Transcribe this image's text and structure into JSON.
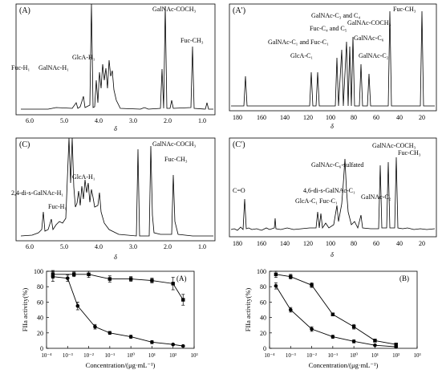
{
  "figure": {
    "nmr_panels": [
      {
        "label": "(A)",
        "xlabel": "δ",
        "ticks": [
          "6.0",
          "5.0",
          "4.0",
          "3.0",
          "2.0",
          "1.0"
        ],
        "annotations": [
          "GalNAc-COCH₃",
          "GlcA-H₁",
          "Fuc-H₁",
          "GalNAc-H₁",
          "Fuc-CH₃"
        ]
      },
      {
        "label": "(A′)",
        "xlabel": "δ",
        "ticks": [
          "180",
          "160",
          "140",
          "120",
          "100",
          "80",
          "60",
          "40",
          "20"
        ],
        "annotations": [
          "Fuc-CH₃",
          "GalNAc-C₃ and C₄",
          "GalNAc-COCH₃",
          "Fuc-C₄ and C₅",
          "GalNAc-C₁ and Fuc-C₁",
          "GalNAc-C₆",
          "GlcA-C₁",
          "GalNAc-C₂"
        ]
      },
      {
        "label": "(C)",
        "xlabel": "δ",
        "ticks": [
          "6.0",
          "5.0",
          "4.0",
          "3.0",
          "2.0",
          "1.0"
        ],
        "annotations": [
          "GalNAc-COCH₃",
          "Fuc-CH₃",
          "GlcA-H₁",
          "2,4-di-s-GalNAc-H₁",
          "Fuc-H₁"
        ]
      },
      {
        "label": "(C′)",
        "xlabel": "δ",
        "ticks": [
          "180",
          "160",
          "140",
          "120",
          "100",
          "80",
          "60",
          "40",
          "20"
        ],
        "annotations": [
          "GalNAc-COCH₃",
          "Fuc-CH₃",
          "GalNAc-C₆-sulfated",
          "C=O",
          "4,6-di-s-GalNAc-C₁",
          "GlcA-C₁",
          "Fuc-C₁",
          "GalNAc-C₂"
        ]
      }
    ]
  },
  "chart_data": [
    {
      "type": "line",
      "label": "(A)",
      "xlabel": "Concentration/(μg·mL⁻¹)",
      "ylabel": "FIIa activity(%)",
      "x_scale": "log",
      "xlim": [
        0.0001,
        1000
      ],
      "ylim": [
        0,
        100
      ],
      "x_ticks": [
        "10⁻⁴",
        "10⁻³",
        "10⁻²",
        "10⁻¹",
        "10⁰",
        "10¹",
        "10²",
        "10³"
      ],
      "y_ticks": [
        "0",
        "20",
        "40",
        "60",
        "80",
        "100"
      ],
      "series": [
        {
          "marker": "square",
          "x": [
            0.0002,
            0.002,
            0.01,
            0.1,
            1,
            10,
            100,
            300
          ],
          "y": [
            96,
            96,
            96,
            90,
            90,
            88,
            84,
            63
          ],
          "err": [
            5,
            3,
            4,
            4,
            3,
            3,
            8,
            7
          ]
        },
        {
          "marker": "circle",
          "x": [
            0.0002,
            0.001,
            0.003,
            0.02,
            0.1,
            1,
            10,
            100,
            300
          ],
          "y": [
            93,
            91,
            55,
            28,
            20,
            15,
            8,
            5,
            3
          ],
          "err": [
            6,
            4,
            5,
            3,
            2,
            2,
            2,
            1,
            1
          ]
        }
      ]
    },
    {
      "type": "line",
      "label": "(B)",
      "xlabel": "Concentration/(μg·mL⁻¹)",
      "ylabel": "FIIa activity(%)",
      "x_scale": "log",
      "xlim": [
        0.0001,
        1000
      ],
      "ylim": [
        0,
        100
      ],
      "x_ticks": [
        "10⁻⁴",
        "10⁻³",
        "10⁻²",
        "10⁻¹",
        "10⁰",
        "10¹",
        "10²",
        "10³"
      ],
      "y_ticks": [
        "0",
        "20",
        "40",
        "60",
        "80",
        "100"
      ],
      "series": [
        {
          "marker": "square",
          "x": [
            0.0002,
            0.001,
            0.01,
            0.1,
            1,
            10,
            100
          ],
          "y": [
            96,
            93,
            82,
            44,
            28,
            10,
            5
          ],
          "err": [
            4,
            3,
            3,
            2,
            3,
            2,
            1
          ]
        },
        {
          "marker": "circle",
          "x": [
            0.0002,
            0.001,
            0.01,
            0.1,
            1,
            10,
            100
          ],
          "y": [
            81,
            50,
            25,
            15,
            9,
            4,
            2
          ],
          "err": [
            4,
            3,
            3,
            2,
            2,
            1,
            1
          ]
        }
      ]
    }
  ]
}
